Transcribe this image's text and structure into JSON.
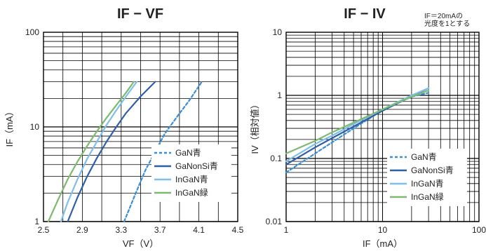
{
  "chart_data": [
    {
      "type": "line",
      "title": "IF − VF",
      "xlabel": "VF（V）",
      "ylabel": "IF（mA）",
      "xscale": "linear",
      "yscale": "log",
      "xlim": [
        2.5,
        4.5
      ],
      "ylim": [
        1,
        100
      ],
      "xticks": [
        "2.5",
        "2.9",
        "3.3",
        "3.7",
        "4.1",
        "4.5"
      ],
      "yticks": [
        "1",
        "10",
        "100"
      ],
      "grid": true,
      "legend_position": "bottom-right",
      "series": [
        {
          "name": "GaN青",
          "color": "#3a8fd9",
          "dash": true,
          "x": [
            3.33,
            3.45,
            3.55,
            3.65,
            3.75,
            3.88,
            4.0,
            4.13
          ],
          "y": [
            1,
            2,
            3.5,
            5.5,
            8.5,
            13,
            19,
            30
          ]
        },
        {
          "name": "GaNonSi青",
          "color": "#2e5fa8",
          "dash": false,
          "x": [
            2.75,
            2.85,
            2.95,
            3.05,
            3.15,
            3.25,
            3.35,
            3.5,
            3.65
          ],
          "y": [
            1,
            1.8,
            3,
            4.7,
            7,
            10,
            14,
            21,
            30
          ]
        },
        {
          "name": "InGaN青",
          "color": "#7fbfe9",
          "dash": false,
          "x": [
            2.68,
            2.75,
            2.85,
            2.95,
            3.05,
            3.15,
            3.25,
            3.35,
            3.46
          ],
          "y": [
            1,
            1.6,
            2.8,
            4.6,
            7,
            10.5,
            15,
            21,
            30
          ]
        },
        {
          "name": "InGaN緑",
          "color": "#7dba6e",
          "dash": false,
          "x": [
            2.55,
            2.65,
            2.75,
            2.85,
            2.95,
            3.05,
            3.15,
            3.25,
            3.35,
            3.43
          ],
          "y": [
            1,
            1.7,
            2.8,
            4.3,
            6.3,
            9,
            12.5,
            17,
            23,
            30
          ]
        }
      ]
    },
    {
      "type": "line",
      "title": "IF − IV",
      "note": [
        "IF＝20mAの",
        "光度を1とする"
      ],
      "xlabel": "IF（mA）",
      "ylabel": "IV（相対値）",
      "xscale": "log",
      "yscale": "log",
      "xlim": [
        1,
        100
      ],
      "ylim": [
        0.01,
        10
      ],
      "xticks": [
        "1",
        "10",
        "100"
      ],
      "yticks": [
        "0.01",
        "0.1",
        "1",
        "10"
      ],
      "grid": true,
      "legend_position": "bottom-right",
      "series": [
        {
          "name": "GaN青",
          "color": "#3a8fd9",
          "dash": true,
          "x": [
            1,
            2,
            3,
            5,
            10,
            20,
            30
          ],
          "y": [
            0.06,
            0.12,
            0.18,
            0.3,
            0.58,
            0.95,
            1.1
          ]
        },
        {
          "name": "GaNonSi青",
          "color": "#2e5fa8",
          "dash": false,
          "x": [
            1,
            2,
            3,
            5,
            10,
            20,
            30
          ],
          "y": [
            0.08,
            0.15,
            0.21,
            0.32,
            0.57,
            0.97,
            1.3
          ]
        },
        {
          "name": "InGaN青",
          "color": "#7fbfe9",
          "dash": false,
          "x": [
            1,
            2,
            3,
            5,
            10,
            20,
            30
          ],
          "y": [
            0.09,
            0.17,
            0.23,
            0.35,
            0.6,
            1.0,
            1.3
          ]
        },
        {
          "name": "InGaN緑",
          "color": "#7dba6e",
          "dash": false,
          "x": [
            1,
            2,
            3,
            5,
            10,
            20,
            30
          ],
          "y": [
            0.12,
            0.19,
            0.26,
            0.37,
            0.6,
            0.95,
            1.2
          ]
        }
      ]
    }
  ]
}
